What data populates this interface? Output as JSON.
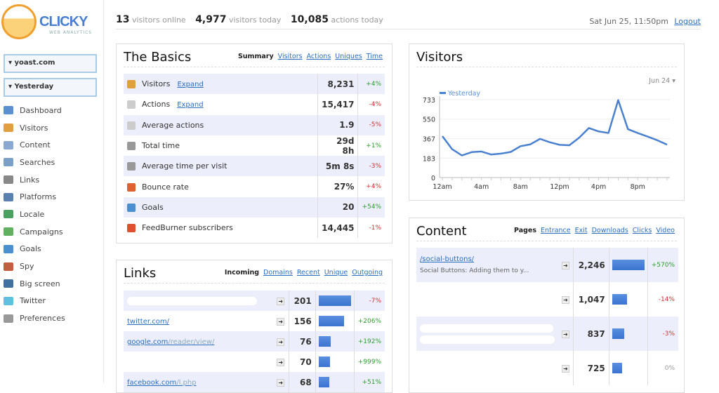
{
  "logo": {
    "name": "CLICKY",
    "sub": "WEB ANALYTICS"
  },
  "site_select": "▾ yoast.com",
  "date_select": "▾ Yesterday",
  "nav": [
    {
      "label": "Dashboard",
      "color": "#5a8fd0"
    },
    {
      "label": "Visitors",
      "color": "#e0a040"
    },
    {
      "label": "Content",
      "color": "#8aa8d0"
    },
    {
      "label": "Searches",
      "color": "#7aa0c8"
    },
    {
      "label": "Links",
      "color": "#888"
    },
    {
      "label": "Platforms",
      "color": "#5a80b0"
    },
    {
      "label": "Locale",
      "color": "#4aa060"
    },
    {
      "label": "Campaigns",
      "color": "#60b060"
    },
    {
      "label": "Goals",
      "color": "#4a90d0"
    },
    {
      "label": "Spy",
      "color": "#c06040"
    },
    {
      "label": "Big screen",
      "color": "#4070a0"
    },
    {
      "label": "Twitter",
      "color": "#60c0e0"
    },
    {
      "label": "Preferences",
      "color": "#999"
    }
  ],
  "top": {
    "online": "13",
    "online_label": "visitors online",
    "today": "4,977",
    "today_label": "visitors today",
    "actions": "10,085",
    "actions_label": "actions today",
    "date": "Sat Jun 25, 11:50pm",
    "logout": "Logout"
  },
  "basics": {
    "title": "The Basics",
    "tabs": [
      "Summary",
      "Visitors",
      "Actions",
      "Uniques",
      "Time"
    ],
    "expand": "Expand",
    "rows": [
      {
        "label": "Visitors",
        "value": "8,231",
        "change": "+4%",
        "dir": "pos",
        "expand": true,
        "color": "#e0a040"
      },
      {
        "label": "Actions",
        "value": "15,417",
        "change": "-4%",
        "dir": "neg",
        "expand": true,
        "color": "#ccc"
      },
      {
        "label": "Average actions",
        "value": "1.9",
        "change": "-5%",
        "dir": "neg",
        "color": "#ccc"
      },
      {
        "label": "Total time",
        "value": "29d 8h",
        "change": "+1%",
        "dir": "pos",
        "color": "#999"
      },
      {
        "label": "Average time per visit",
        "value": "5m 8s",
        "change": "-3%",
        "dir": "neg",
        "color": "#999"
      },
      {
        "label": "Bounce rate",
        "value": "27%",
        "change": "+4%",
        "dir": "neg",
        "color": "#e06030"
      },
      {
        "label": "Goals",
        "value": "20",
        "change": "+54%",
        "dir": "pos",
        "color": "#4a90d0"
      },
      {
        "label": "FeedBurner subscribers",
        "value": "14,445",
        "change": "-1%",
        "dir": "neg",
        "color": "#e05030"
      }
    ]
  },
  "visitors": {
    "title": "Visitors",
    "range": "Jun 24 ▾"
  },
  "chart_data": {
    "type": "line",
    "title": "Visitors",
    "series": [
      {
        "name": "Yesterday",
        "values": [
          390,
          267,
          208,
          239,
          245,
          217,
          225,
          241,
          295,
          312,
          364,
          332,
          308,
          304,
          375,
          466,
          434,
          419,
          729,
          455,
          419,
          386,
          351,
          310
        ]
      }
    ],
    "x": [
      0,
      1,
      2,
      3,
      4,
      5,
      6,
      7,
      8,
      9,
      10,
      11,
      12,
      13,
      14,
      15,
      16,
      17,
      18,
      19,
      20,
      21,
      22,
      23
    ],
    "xticks": [
      "12am",
      "4am",
      "8am",
      "12pm",
      "4pm",
      "8pm"
    ],
    "yticks": [
      "0",
      "183",
      "367",
      "550",
      "733"
    ],
    "ylim": [
      0,
      733
    ],
    "grid": true,
    "legend": "top-left",
    "color": "#4a80d0"
  },
  "links": {
    "title": "Links",
    "tabs": [
      "Incoming",
      "Domains",
      "Recent",
      "Unique",
      "Outgoing"
    ],
    "rows": [
      {
        "domain": "",
        "path": "",
        "value": "201",
        "pct": 1.0,
        "change": "-7%",
        "dir": "neg",
        "blur": true
      },
      {
        "domain": "twitter.com/",
        "path": "",
        "value": "156",
        "pct": 0.78,
        "change": "+206%",
        "dir": "pos"
      },
      {
        "domain": "google.com",
        "path": "/reader/view/",
        "value": "76",
        "pct": 0.38,
        "change": "+192%",
        "dir": "pos"
      },
      {
        "domain": "",
        "path": "",
        "value": "70",
        "pct": 0.35,
        "change": "+999%",
        "dir": "pos"
      },
      {
        "domain": "facebook.com",
        "path": "/l.php",
        "value": "68",
        "pct": 0.34,
        "change": "+51%",
        "dir": "pos"
      }
    ]
  },
  "content": {
    "title": "Content",
    "tabs": [
      "Pages",
      "Entrance",
      "Exit",
      "Downloads",
      "Clicks",
      "Video"
    ],
    "rows": [
      {
        "path": "/social-buttons/",
        "desc": "Social Buttons: Adding them to y...",
        "value": "2,246",
        "pct": 1.0,
        "change": "+570%",
        "dir": "pos"
      },
      {
        "path": "",
        "desc": "",
        "value": "1,047",
        "pct": 0.47,
        "change": "-14%",
        "dir": "neg"
      },
      {
        "path": "",
        "desc": "",
        "value": "837",
        "pct": 0.37,
        "change": "-3%",
        "dir": "neg",
        "blur": true
      },
      {
        "path": "",
        "desc": "",
        "value": "725",
        "pct": 0.32,
        "change": "0%",
        "dir": "zero"
      }
    ]
  }
}
